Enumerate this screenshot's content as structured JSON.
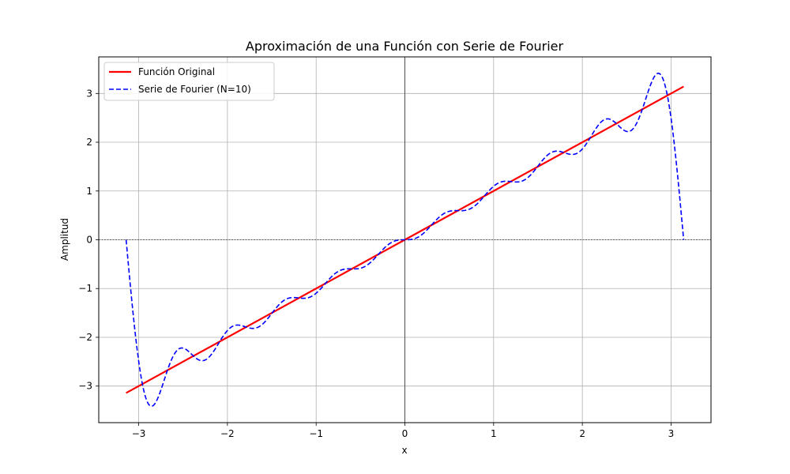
{
  "chart_data": {
    "type": "line",
    "title": "Aproximación de una Función con Serie de Fourier",
    "xlabel": "x",
    "ylabel": "Amplitud",
    "xlim": [
      -3.45,
      3.45
    ],
    "ylim": [
      -3.75,
      3.75
    ],
    "xticks": [
      -3,
      -2,
      -1,
      0,
      1,
      2,
      3
    ],
    "yticks": [
      -3,
      -2,
      -1,
      0,
      1,
      2,
      3
    ],
    "xtick_labels": [
      "−3",
      "−2",
      "−1",
      "0",
      "1",
      "2",
      "3"
    ],
    "ytick_labels": [
      "−3",
      "−2",
      "−1",
      "0",
      "1",
      "2",
      "3"
    ],
    "grid": true,
    "reference_lines": {
      "x": 0,
      "y": 0
    },
    "legend_position": "top-left",
    "series": [
      {
        "name": "Función Original",
        "color": "#ff0000",
        "style": "solid",
        "function": "f(x) = x",
        "x_range": [
          -3.14159,
          3.14159
        ]
      },
      {
        "name": "Serie de Fourier (N=10)",
        "color": "#0000ff",
        "style": "dashed",
        "function": "S(x) = sum_{n=1}^{10} 2(-1)^(n+1) sin(n x) / n",
        "x_range": [
          -3.14159,
          3.14159
        ],
        "terms": 10
      }
    ]
  }
}
